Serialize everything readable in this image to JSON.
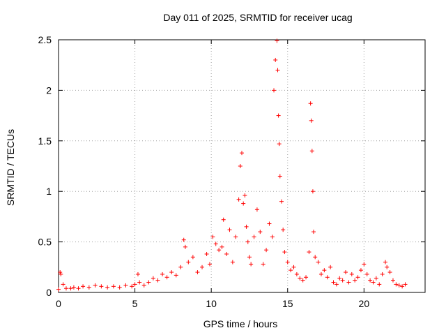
{
  "chart_data": {
    "type": "scatter",
    "title": "Day 011 of 2025, SRMTID for receiver ucag",
    "xlabel": "GPS time / hours",
    "ylabel": "SRMTID / TECUs",
    "xlim": [
      0,
      24
    ],
    "ylim": [
      0,
      2.5
    ],
    "xticks": [
      0,
      5,
      10,
      15,
      20
    ],
    "yticks": [
      0,
      0.5,
      1,
      1.5,
      2,
      2.5
    ],
    "grid": true,
    "series": [
      {
        "name": "SRMTID",
        "color": "#ff0000",
        "marker": "+",
        "x": [
          0.0,
          0.1,
          0.15,
          0.3,
          0.5,
          0.8,
          1.0,
          1.3,
          1.6,
          2.0,
          2.4,
          2.8,
          3.2,
          3.6,
          4.0,
          4.4,
          4.8,
          5.0,
          5.2,
          5.3,
          5.6,
          5.9,
          6.2,
          6.5,
          6.8,
          7.1,
          7.4,
          7.7,
          8.0,
          8.2,
          8.3,
          8.5,
          8.8,
          9.1,
          9.4,
          9.7,
          9.9,
          10.1,
          10.3,
          10.5,
          10.7,
          10.8,
          11.0,
          11.2,
          11.4,
          11.6,
          11.8,
          11.9,
          12.0,
          12.1,
          12.2,
          12.3,
          12.4,
          12.5,
          12.6,
          12.8,
          13.0,
          13.2,
          13.4,
          13.6,
          13.8,
          14.0,
          14.1,
          14.2,
          14.3,
          14.35,
          14.4,
          14.45,
          14.5,
          14.6,
          14.7,
          14.8,
          15.0,
          15.2,
          15.4,
          15.6,
          15.8,
          16.0,
          16.2,
          16.4,
          16.5,
          16.55,
          16.6,
          16.65,
          16.7,
          16.8,
          17.0,
          17.2,
          17.4,
          17.6,
          17.8,
          18.0,
          18.2,
          18.4,
          18.6,
          18.8,
          19.0,
          19.2,
          19.4,
          19.6,
          19.8,
          20.0,
          20.2,
          20.4,
          20.6,
          20.8,
          21.0,
          21.2,
          21.4,
          21.5,
          21.7,
          21.9,
          22.1,
          22.3,
          22.5,
          22.7
        ],
        "y": [
          0.03,
          0.2,
          0.18,
          0.08,
          0.04,
          0.04,
          0.05,
          0.04,
          0.06,
          0.05,
          0.07,
          0.06,
          0.05,
          0.06,
          0.05,
          0.07,
          0.06,
          0.08,
          0.18,
          0.1,
          0.07,
          0.1,
          0.14,
          0.12,
          0.18,
          0.15,
          0.2,
          0.17,
          0.25,
          0.52,
          0.45,
          0.3,
          0.35,
          0.2,
          0.25,
          0.38,
          0.28,
          0.55,
          0.48,
          0.42,
          0.45,
          0.72,
          0.38,
          0.62,
          0.3,
          0.55,
          0.92,
          1.25,
          1.38,
          0.88,
          0.96,
          0.65,
          0.5,
          0.35,
          0.28,
          0.55,
          0.82,
          0.6,
          0.28,
          0.42,
          0.68,
          0.55,
          2.0,
          2.3,
          2.49,
          2.2,
          1.75,
          1.47,
          1.15,
          0.9,
          0.62,
          0.4,
          0.3,
          0.22,
          0.25,
          0.18,
          0.14,
          0.12,
          0.15,
          0.4,
          1.87,
          1.7,
          1.4,
          1.0,
          0.6,
          0.35,
          0.3,
          0.18,
          0.22,
          0.15,
          0.25,
          0.1,
          0.08,
          0.14,
          0.12,
          0.2,
          0.1,
          0.18,
          0.12,
          0.15,
          0.22,
          0.28,
          0.18,
          0.12,
          0.1,
          0.14,
          0.08,
          0.18,
          0.3,
          0.25,
          0.2,
          0.12,
          0.08,
          0.07,
          0.06,
          0.08
        ]
      }
    ]
  }
}
